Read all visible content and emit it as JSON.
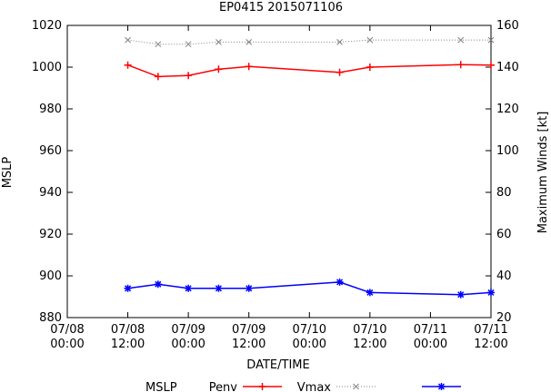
{
  "chart_data": {
    "type": "line",
    "title": "EP0415 2015071106",
    "xlabel": "DATE/TIME",
    "ylabel_left": "MSLP",
    "ylabel_right": "Maximum Winds [kt]",
    "x_unit": "hours from 07/08 00:00",
    "x_ticks": [
      {
        "hour": 0,
        "line1": "07/08",
        "line2": "00:00"
      },
      {
        "hour": 12,
        "line1": "07/08",
        "line2": "12:00"
      },
      {
        "hour": 24,
        "line1": "07/09",
        "line2": "00:00"
      },
      {
        "hour": 36,
        "line1": "07/09",
        "line2": "12:00"
      },
      {
        "hour": 48,
        "line1": "07/10",
        "line2": "00:00"
      },
      {
        "hour": 60,
        "line1": "07/10",
        "line2": "12:00"
      },
      {
        "hour": 72,
        "line1": "07/11",
        "line2": "00:00"
      },
      {
        "hour": 84,
        "line1": "07/11",
        "line2": "12:00"
      }
    ],
    "xlim": [
      0,
      84
    ],
    "ylim_left": [
      880,
      1020
    ],
    "ylim_right": [
      20,
      160
    ],
    "yticks_left": [
      880,
      900,
      920,
      940,
      960,
      980,
      1000,
      1020
    ],
    "yticks_right": [
      20,
      40,
      60,
      80,
      100,
      120,
      140,
      160
    ],
    "legend_title": "MSLP",
    "legend_placement": "bottom",
    "series": [
      {
        "name": "Penv",
        "axis": "left",
        "color": "#ff0000",
        "marker": "plus",
        "style": "solid",
        "points": [
          [
            12,
            1001
          ],
          [
            18,
            995.5
          ],
          [
            24,
            996
          ],
          [
            30,
            999
          ],
          [
            36,
            1000.3
          ],
          [
            54,
            997.5
          ],
          [
            60,
            1000
          ],
          [
            78,
            1001.2
          ],
          [
            84,
            1001
          ]
        ]
      },
      {
        "name": "Vmax",
        "axis": "right",
        "color": "#808080",
        "marker": "x",
        "style": "dotted",
        "points": [
          [
            12,
            153
          ],
          [
            18,
            151
          ],
          [
            24,
            151
          ],
          [
            30,
            152
          ],
          [
            36,
            152
          ],
          [
            54,
            152
          ],
          [
            60,
            153
          ],
          [
            78,
            153
          ],
          [
            84,
            153
          ]
        ]
      },
      {
        "name": "",
        "axis": "right",
        "color": "#0000ff",
        "marker": "star",
        "style": "solid",
        "points": [
          [
            12,
            34
          ],
          [
            18,
            36
          ],
          [
            24,
            34
          ],
          [
            30,
            34
          ],
          [
            36,
            34
          ],
          [
            54,
            37
          ],
          [
            60,
            32
          ],
          [
            78,
            31
          ],
          [
            84,
            32
          ]
        ]
      }
    ]
  }
}
